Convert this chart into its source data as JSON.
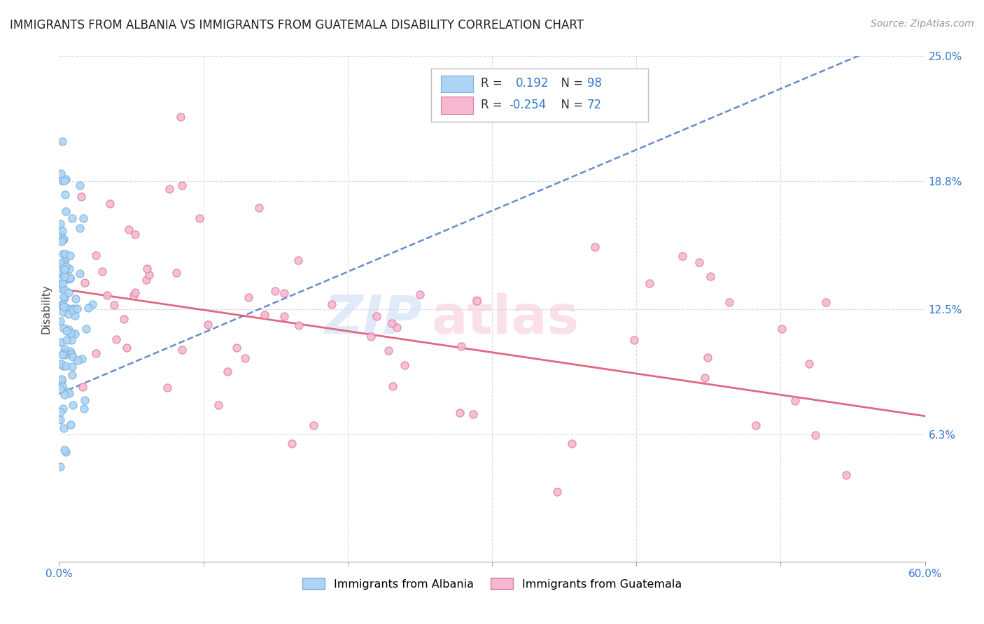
{
  "title": "IMMIGRANTS FROM ALBANIA VS IMMIGRANTS FROM GUATEMALA DISABILITY CORRELATION CHART",
  "source": "Source: ZipAtlas.com",
  "ylabel": "Disability",
  "xlim": [
    0.0,
    0.6
  ],
  "ylim": [
    0.0,
    0.25
  ],
  "ytick_positions": [
    0.063,
    0.125,
    0.188,
    0.25
  ],
  "ytick_labels": [
    "6.3%",
    "12.5%",
    "18.8%",
    "25.0%"
  ],
  "albania_color": "#add4f5",
  "albania_edge": "#7ab0dc",
  "guatemala_color": "#f5b8d0",
  "guatemala_edge": "#dc7aa0",
  "albania_R": 0.192,
  "albania_N": 98,
  "guatemala_R": -0.254,
  "guatemala_N": 72,
  "albania_line_color": "#3366bb",
  "guatemala_line_color": "#e0607a",
  "grid_color": "#d8dce8",
  "background_color": "#ffffff",
  "text_color_blue": "#3377cc",
  "title_fontsize": 12,
  "source_fontsize": 10
}
